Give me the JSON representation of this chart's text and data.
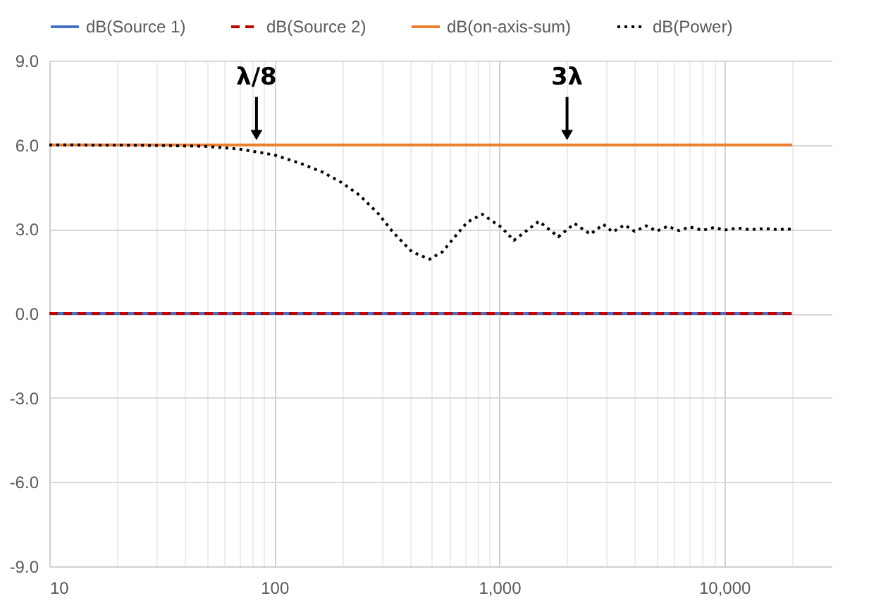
{
  "chart_data": {
    "type": "line",
    "xlim": [
      10,
      30000
    ],
    "ylim": [
      -9,
      9
    ],
    "xticks": [
      {
        "value": 10,
        "label": "10"
      },
      {
        "value": 20,
        "label": null
      },
      {
        "value": 30,
        "label": null
      },
      {
        "value": 40,
        "label": null
      },
      {
        "value": 50,
        "label": null
      },
      {
        "value": 60,
        "label": null
      },
      {
        "value": 70,
        "label": null
      },
      {
        "value": 80,
        "label": null
      },
      {
        "value": 90,
        "label": null
      },
      {
        "value": 100,
        "label": "100"
      },
      {
        "value": 200,
        "label": null
      },
      {
        "value": 300,
        "label": null
      },
      {
        "value": 400,
        "label": null
      },
      {
        "value": 500,
        "label": null
      },
      {
        "value": 600,
        "label": null
      },
      {
        "value": 700,
        "label": null
      },
      {
        "value": 800,
        "label": null
      },
      {
        "value": 900,
        "label": null
      },
      {
        "value": 1000,
        "label": "1,000"
      },
      {
        "value": 2000,
        "label": null
      },
      {
        "value": 3000,
        "label": null
      },
      {
        "value": 4000,
        "label": null
      },
      {
        "value": 5000,
        "label": null
      },
      {
        "value": 6000,
        "label": null
      },
      {
        "value": 7000,
        "label": null
      },
      {
        "value": 8000,
        "label": null
      },
      {
        "value": 9000,
        "label": null
      },
      {
        "value": 10000,
        "label": "10,000"
      },
      {
        "value": 20000,
        "label": null
      }
    ],
    "yticks": [
      {
        "value": -9,
        "label": "-9.0"
      },
      {
        "value": -6,
        "label": "-6.0"
      },
      {
        "value": -3,
        "label": "-3.0"
      },
      {
        "value": 0,
        "label": "0.0"
      },
      {
        "value": 3,
        "label": "3.0"
      },
      {
        "value": 6,
        "label": "6.0"
      },
      {
        "value": 9,
        "label": "9.0"
      }
    ],
    "grid": true,
    "legend": "top",
    "marker": "none",
    "log": "x",
    "series": [
      {
        "name": "dB(Source 1)",
        "color": "#4472c4",
        "line_style": "solid",
        "x": [
          10,
          20000
        ],
        "values": [
          0,
          0
        ]
      },
      {
        "name": "dB(Source 2)",
        "color": "#c00000",
        "line_style": "dashed",
        "x": [
          10,
          20000
        ],
        "values": [
          0,
          0
        ]
      },
      {
        "name": "dB(on-axis-sum)",
        "color": "#ed7d31",
        "line_style": "solid",
        "x": [
          10,
          20000
        ],
        "values": [
          6,
          6
        ]
      },
      {
        "name": "dB(Power)",
        "color": "#000000",
        "line_style": "dotted",
        "x": [
          10,
          20,
          30,
          49,
          70,
          99,
          130,
          164,
          200,
          240,
          290,
          336,
          408,
          490,
          560,
          630,
          720,
          840,
          1020,
          1160,
          1500,
          1830,
          2160,
          2540,
          2900,
          3190,
          3600,
          4000,
          4500,
          5000,
          5600,
          6300,
          7000,
          8000,
          9000,
          10000,
          11500,
          13000,
          15000,
          17000,
          20000
        ],
        "values": [
          6.0,
          5.99,
          5.98,
          5.95,
          5.85,
          5.65,
          5.35,
          5.03,
          4.65,
          4.2,
          3.55,
          2.9,
          2.2,
          1.93,
          2.2,
          2.7,
          3.25,
          3.53,
          3.07,
          2.6,
          3.28,
          2.73,
          3.2,
          2.82,
          3.17,
          2.9,
          3.15,
          2.92,
          3.12,
          2.93,
          3.1,
          2.95,
          3.08,
          2.96,
          3.06,
          2.97,
          3.04,
          2.98,
          3.02,
          2.99,
          3.0
        ]
      }
    ],
    "annotations": [
      {
        "text": "λ/8",
        "x": 83.3,
        "y": 6
      },
      {
        "text": "3λ",
        "x": 2000,
        "y": 6
      }
    ]
  }
}
